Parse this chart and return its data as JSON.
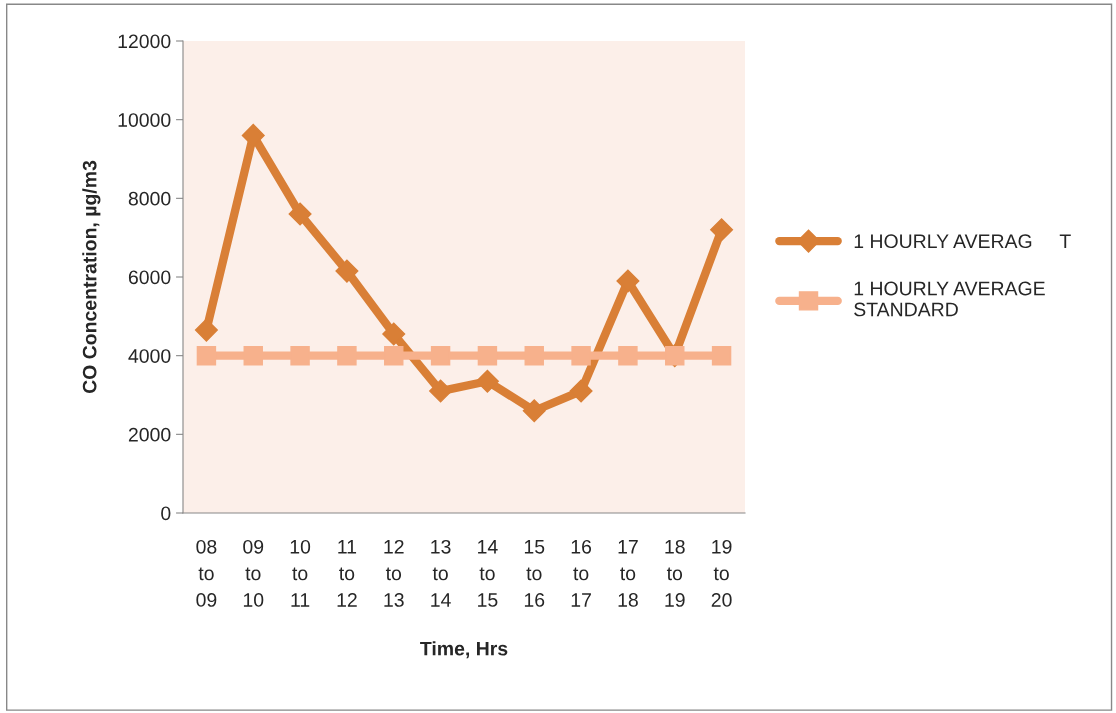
{
  "chart_data": {
    "type": "line",
    "xlabel": "Time, Hrs",
    "ylabel": "CO Concentration, µg/m3",
    "categories": [
      "08\nto\n09",
      "09\nto\n10",
      "10\nto\n11",
      "11\nto\n12",
      "12\nto\n13",
      "13\nto\n14",
      "14\nto\n15",
      "15\nto\n16",
      "16\nto\n17",
      "17\nto\n18",
      "18\nto\n19",
      "19\nto\n20"
    ],
    "series": [
      {
        "name": "1 HOURLY AVERAG     T",
        "color": "#d97f36",
        "marker": "diamond",
        "values": [
          4650,
          9600,
          7600,
          6150,
          4550,
          3100,
          3350,
          2600,
          3100,
          5900,
          4000,
          7200
        ]
      },
      {
        "name": "1 HOURLY AVERAGE\nSTANDARD",
        "color": "#f7b18c",
        "marker": "square",
        "values": [
          4000,
          4000,
          4000,
          4000,
          4000,
          4000,
          4000,
          4000,
          4000,
          4000,
          4000,
          4000
        ]
      }
    ],
    "ylim": [
      0,
      12000
    ],
    "yticks": [
      0,
      2000,
      4000,
      6000,
      8000,
      10000,
      12000
    ],
    "grid": false,
    "legend": "right"
  }
}
